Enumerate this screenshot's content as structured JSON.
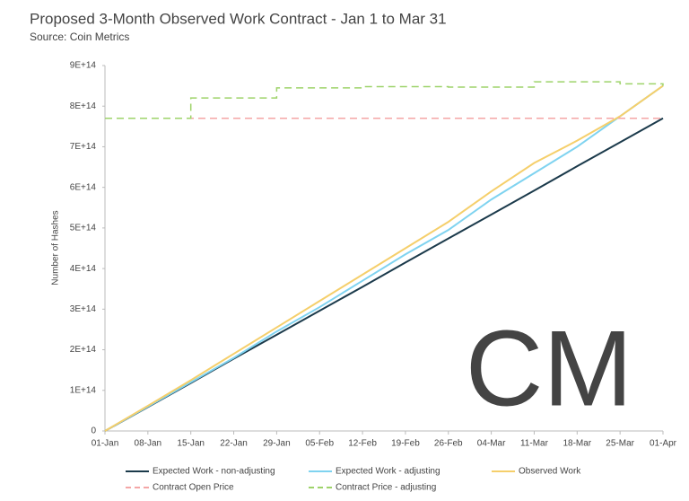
{
  "chart_data": {
    "type": "line",
    "title": "Proposed 3-Month Observed Work Contract - Jan 1 to Mar 31",
    "subtitle": "Source: Coin Metrics",
    "y_label": "Number of Hashes",
    "x": [
      "01-Jan",
      "08-Jan",
      "15-Jan",
      "22-Jan",
      "29-Jan",
      "05-Feb",
      "12-Feb",
      "19-Feb",
      "26-Feb",
      "04-Mar",
      "11-Mar",
      "18-Mar",
      "25-Mar",
      "01-Apr"
    ],
    "ylim": [
      0,
      900000000000000.0
    ],
    "yticks": [
      0,
      {
        "value": 100000000000000.0,
        "label": "1E+14"
      },
      {
        "value": 200000000000000.0,
        "label": "2E+14"
      },
      {
        "value": 300000000000000.0,
        "label": "3E+14"
      },
      {
        "value": 400000000000000.0,
        "label": "4E+14"
      },
      {
        "value": 500000000000000.0,
        "label": "5E+14"
      },
      {
        "value": 600000000000000.0,
        "label": "6E+14"
      },
      {
        "value": 700000000000000.0,
        "label": "7E+14"
      },
      {
        "value": 800000000000000.0,
        "label": "8E+14"
      },
      {
        "value": 900000000000000.0,
        "label": "9E+14"
      }
    ],
    "grid": false,
    "series": [
      {
        "name": "Expected Work - non-adjusting",
        "color": "#1b3a4b",
        "dashed": false,
        "step": false,
        "values": [
          0,
          59000000000000.0,
          118000000000000.0,
          178000000000000.0,
          237000000000000.0,
          296000000000000.0,
          355000000000000.0,
          415000000000000.0,
          474000000000000.0,
          533000000000000.0,
          592000000000000.0,
          652000000000000.0,
          711000000000000.0,
          770000000000000.0
        ]
      },
      {
        "name": "Expected Work - adjusting",
        "color": "#7fd3f0",
        "dashed": false,
        "step": false,
        "values": [
          0,
          60000000000000.0,
          120000000000000.0,
          180000000000000.0,
          245000000000000.0,
          305000000000000.0,
          370000000000000.0,
          435000000000000.0,
          495000000000000.0,
          570000000000000.0,
          635000000000000.0,
          700000000000000.0,
          775000000000000.0,
          850000000000000.0
        ]
      },
      {
        "name": "Observed Work",
        "color": "#f5cf6b",
        "dashed": false,
        "step": false,
        "values": [
          0,
          62000000000000.0,
          125000000000000.0,
          190000000000000.0,
          255000000000000.0,
          320000000000000.0,
          385000000000000.0,
          450000000000000.0,
          515000000000000.0,
          590000000000000.0,
          660000000000000.0,
          715000000000000.0,
          775000000000000.0,
          850000000000000.0
        ]
      },
      {
        "name": "Contract Open Price",
        "color": "#f4a6a6",
        "dashed": true,
        "step": false,
        "values": [
          770000000000000.0,
          770000000000000.0,
          770000000000000.0,
          770000000000000.0,
          770000000000000.0,
          770000000000000.0,
          770000000000000.0,
          770000000000000.0,
          770000000000000.0,
          770000000000000.0,
          770000000000000.0,
          770000000000000.0,
          770000000000000.0,
          770000000000000.0
        ]
      },
      {
        "name": "Contract Price - adjusting",
        "color": "#9ed36a",
        "dashed": true,
        "step": true,
        "values": [
          770000000000000.0,
          770000000000000.0,
          820000000000000.0,
          820000000000000.0,
          845000000000000.0,
          845000000000000.0,
          848000000000000.0,
          848000000000000.0,
          847000000000000.0,
          847000000000000.0,
          860000000000000.0,
          860000000000000.0,
          855000000000000.0,
          850000000000000.0
        ]
      }
    ]
  }
}
